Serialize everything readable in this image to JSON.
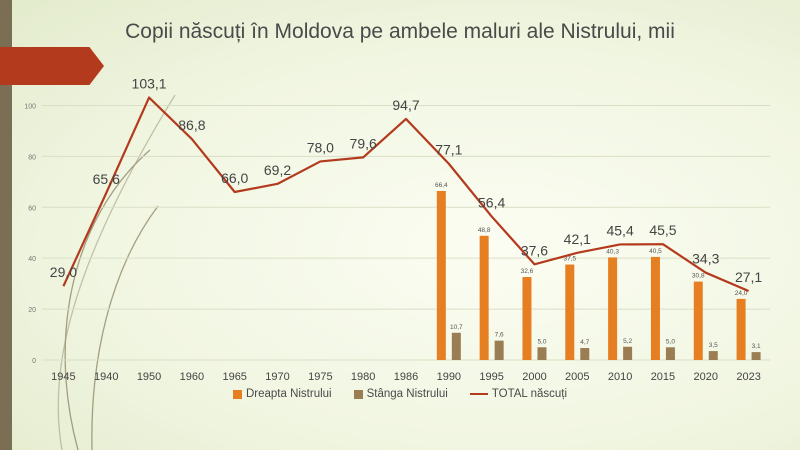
{
  "chart_data": {
    "type": "bar+line",
    "title": "Copii născuți în Moldova pe ambele maluri ale Nistrului, mii",
    "categories": [
      "1945",
      "1940",
      "1950",
      "1960",
      "1965",
      "1970",
      "1975",
      "1980",
      "1986",
      "1990",
      "1995",
      "2000",
      "2005",
      "2010",
      "2015",
      "2020",
      "2023"
    ],
    "ylim": [
      0,
      110
    ],
    "yticks": [
      0,
      20,
      40,
      60,
      80,
      100
    ],
    "series": [
      {
        "name": "Dreapta Nistrului",
        "type": "bar",
        "color": "#e67e22",
        "values": [
          null,
          null,
          null,
          null,
          null,
          null,
          null,
          null,
          null,
          66.4,
          48.8,
          32.6,
          37.5,
          40.3,
          40.5,
          30.8,
          24.0
        ],
        "labels": [
          "",
          "",
          "",
          "",
          "",
          "",
          "",
          "",
          "",
          "66,4",
          "48,8",
          "32,6",
          "37,5",
          "40,3",
          "40,5",
          "30,8",
          "24,0"
        ]
      },
      {
        "name": "Stânga Nistrului",
        "type": "bar",
        "color": "#9a7d52",
        "values": [
          null,
          null,
          null,
          null,
          null,
          null,
          null,
          null,
          null,
          10.7,
          7.6,
          5.0,
          4.7,
          5.2,
          5.0,
          3.5,
          3.1
        ],
        "labels": [
          "",
          "",
          "",
          "",
          "",
          "",
          "",
          "",
          "",
          "10,7",
          "7,6",
          "5,0",
          "4,7",
          "5,2",
          "5,0",
          "3,5",
          "3,1"
        ]
      },
      {
        "name": "TOTAL născuți",
        "type": "line",
        "color": "#b43a1e",
        "values": [
          29.0,
          65.6,
          103.1,
          86.8,
          66.0,
          69.2,
          78.0,
          79.6,
          94.7,
          77.1,
          56.4,
          37.6,
          42.1,
          45.4,
          45.5,
          34.3,
          27.1
        ],
        "labels": [
          "29,0",
          "65,6",
          "103,1",
          "86,8",
          "66,0",
          "69,2",
          "78,0",
          "79,6",
          "94,7",
          "77,1",
          "56,4",
          "37,6",
          "42,1",
          "45,4",
          "45,5",
          "34,3",
          "27,1"
        ]
      }
    ],
    "grid": true,
    "legend": "bottom"
  }
}
